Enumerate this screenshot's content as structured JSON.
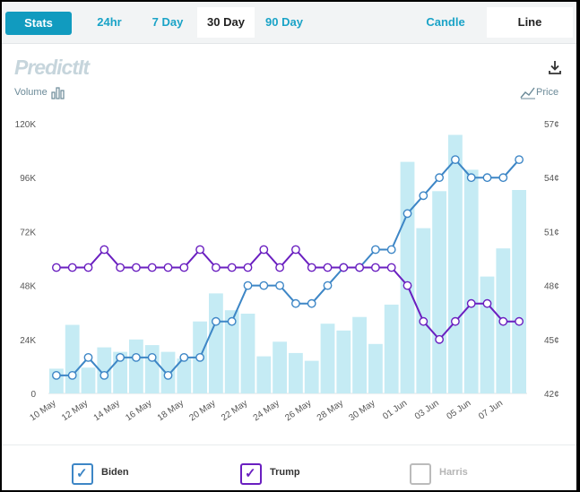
{
  "toolbar": {
    "stats_label": "Stats",
    "tabs": [
      "24hr",
      "7 Day",
      "30 Day",
      "90 Day"
    ],
    "active_tab": "30 Day",
    "chart_types": [
      "Candle",
      "Line"
    ],
    "active_chart_type": "Line"
  },
  "logo_text": "PredictIt",
  "volume_label": "Volume",
  "price_label": "Price",
  "colors": {
    "accent": "#119bbf",
    "biden": "#3d86c6",
    "trump": "#6a1fc0",
    "harris": "#bbbbbb",
    "volume_bar": "#c5ebf4"
  },
  "legend": [
    {
      "name": "Biden",
      "checked": true
    },
    {
      "name": "Trump",
      "checked": true
    },
    {
      "name": "Harris",
      "checked": false
    }
  ],
  "chart_data": {
    "type": "line",
    "title": "",
    "x": [
      "10 May",
      "11 May",
      "12 May",
      "13 May",
      "14 May",
      "15 May",
      "16 May",
      "17 May",
      "18 May",
      "19 May",
      "20 May",
      "21 May",
      "22 May",
      "23 May",
      "24 May",
      "25 May",
      "26 May",
      "27 May",
      "28 May",
      "29 May",
      "30 May",
      "31 May",
      "01 Jun",
      "02 Jun",
      "03 Jun",
      "04 Jun",
      "05 Jun",
      "06 Jun",
      "07 Jun",
      "08 Jun"
    ],
    "x_tick_labels": [
      "10 May",
      "12 May",
      "14 May",
      "16 May",
      "18 May",
      "20 May",
      "22 May",
      "24 May",
      "26 May",
      "28 May",
      "30 May",
      "01 Jun",
      "03 Jun",
      "05 Jun",
      "07 Jun"
    ],
    "y_left": {
      "label": "Volume",
      "ticks": [
        "0",
        "24K",
        "48K",
        "72K",
        "96K",
        "120K"
      ],
      "range": [
        0,
        120000
      ]
    },
    "y_right": {
      "label": "Price",
      "ticks": [
        "42¢",
        "45¢",
        "48¢",
        "51¢",
        "54¢",
        "57¢"
      ],
      "range": [
        42,
        57
      ]
    },
    "volume": [
      11000,
      30500,
      11500,
      20500,
      18500,
      24000,
      21500,
      18500,
      15500,
      32000,
      44500,
      37000,
      35500,
      16500,
      23000,
      18000,
      14500,
      31000,
      28000,
      34000,
      22000,
      39500,
      103000,
      73500,
      90000,
      115000,
      99500,
      52000,
      64500,
      90500
    ],
    "series": [
      {
        "name": "Biden",
        "values": [
          43,
          43,
          44,
          43,
          44,
          44,
          44,
          43,
          44,
          44,
          46,
          46,
          48,
          48,
          48,
          47,
          47,
          48,
          49,
          49,
          50,
          50,
          52,
          53,
          54,
          55,
          54,
          54,
          54,
          55
        ]
      },
      {
        "name": "Trump",
        "values": [
          49,
          49,
          49,
          50,
          49,
          49,
          49,
          49,
          49,
          50,
          49,
          49,
          49,
          50,
          49,
          50,
          49,
          49,
          49,
          49,
          49,
          49,
          48,
          46,
          45,
          46,
          47,
          47,
          46,
          46
        ]
      }
    ]
  }
}
